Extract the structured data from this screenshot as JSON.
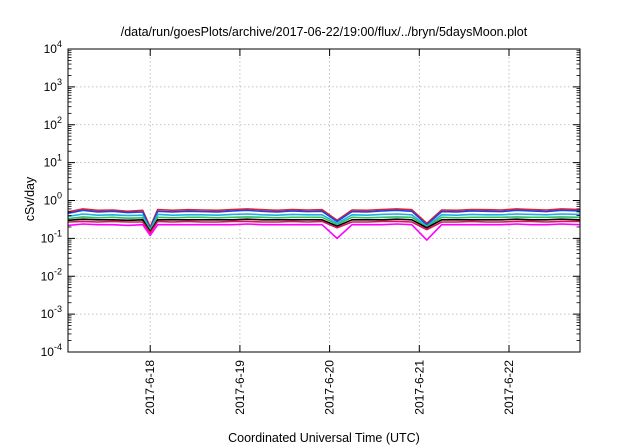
{
  "chart_data": {
    "type": "line",
    "title": "/data/run/goesPlots/archive/2017-06-22/19:00/flux/../bryn/5daysMoon.plot",
    "xlabel": "Coordinated Universal Time (UTC)",
    "ylabel": "cSv/day",
    "yscale": "log",
    "ylim": [
      0.0001,
      10000
    ],
    "xlim": [
      "2017-06-17T02:00",
      "2017-06-22T19:00"
    ],
    "grid": true,
    "y_ticks": [
      {
        "value": 0.0001,
        "mantissa": "10",
        "exp": "-4"
      },
      {
        "value": 0.001,
        "mantissa": "10",
        "exp": "-3"
      },
      {
        "value": 0.01,
        "mantissa": "10",
        "exp": "-2"
      },
      {
        "value": 0.1,
        "mantissa": "10",
        "exp": "-1"
      },
      {
        "value": 1,
        "mantissa": "10",
        "exp": "0"
      },
      {
        "value": 10,
        "mantissa": "10",
        "exp": "1"
      },
      {
        "value": 100,
        "mantissa": "10",
        "exp": "2"
      },
      {
        "value": 1000,
        "mantissa": "10",
        "exp": "3"
      },
      {
        "value": 10000,
        "mantissa": "10",
        "exp": "4"
      }
    ],
    "x_ticks": [
      {
        "value": "2017-06-18T00:00",
        "label": "2017-6-18"
      },
      {
        "value": "2017-06-19T00:00",
        "label": "2017-6-19"
      },
      {
        "value": "2017-06-20T00:00",
        "label": "2017-6-20"
      },
      {
        "value": "2017-06-21T00:00",
        "label": "2017-6-21"
      },
      {
        "value": "2017-06-22T00:00",
        "label": "2017-6-22"
      }
    ],
    "x": [
      "2017-06-17T02:00",
      "2017-06-17T06:00",
      "2017-06-17T10:00",
      "2017-06-17T14:00",
      "2017-06-17T18:00",
      "2017-06-17T22:00",
      "2017-06-18T00:00",
      "2017-06-18T02:00",
      "2017-06-18T06:00",
      "2017-06-18T10:00",
      "2017-06-18T14:00",
      "2017-06-18T18:00",
      "2017-06-18T22:00",
      "2017-06-19T02:00",
      "2017-06-19T06:00",
      "2017-06-19T10:00",
      "2017-06-19T14:00",
      "2017-06-19T18:00",
      "2017-06-19T22:00",
      "2017-06-20T02:00",
      "2017-06-20T06:00",
      "2017-06-20T10:00",
      "2017-06-20T14:00",
      "2017-06-20T18:00",
      "2017-06-20T22:00",
      "2017-06-21T02:00",
      "2017-06-21T06:00",
      "2017-06-21T10:00",
      "2017-06-21T14:00",
      "2017-06-21T18:00",
      "2017-06-21T22:00",
      "2017-06-22T02:00",
      "2017-06-22T06:00",
      "2017-06-22T10:00",
      "2017-06-22T14:00",
      "2017-06-22T19:00"
    ],
    "series": [
      {
        "color": "#e4202a",
        "values": [
          0.5,
          0.6,
          0.55,
          0.56,
          0.52,
          0.55,
          0.2,
          0.58,
          0.55,
          0.57,
          0.56,
          0.55,
          0.58,
          0.6,
          0.57,
          0.55,
          0.58,
          0.56,
          0.57,
          0.3,
          0.56,
          0.55,
          0.58,
          0.6,
          0.57,
          0.25,
          0.56,
          0.55,
          0.58,
          0.57,
          0.56,
          0.6,
          0.58,
          0.56,
          0.6,
          0.58
        ]
      },
      {
        "color": "#2040e0",
        "values": [
          0.46,
          0.55,
          0.5,
          0.52,
          0.48,
          0.5,
          0.18,
          0.52,
          0.5,
          0.52,
          0.51,
          0.5,
          0.53,
          0.55,
          0.52,
          0.5,
          0.53,
          0.51,
          0.52,
          0.28,
          0.51,
          0.5,
          0.53,
          0.55,
          0.52,
          0.23,
          0.51,
          0.5,
          0.53,
          0.52,
          0.51,
          0.55,
          0.53,
          0.51,
          0.55,
          0.53
        ]
      },
      {
        "color": "#20b0e0",
        "values": [
          0.38,
          0.44,
          0.41,
          0.42,
          0.4,
          0.41,
          0.17,
          0.43,
          0.41,
          0.42,
          0.42,
          0.41,
          0.43,
          0.44,
          0.42,
          0.41,
          0.43,
          0.42,
          0.42,
          0.25,
          0.42,
          0.41,
          0.43,
          0.44,
          0.42,
          0.21,
          0.42,
          0.41,
          0.43,
          0.42,
          0.42,
          0.44,
          0.43,
          0.42,
          0.44,
          0.43
        ]
      },
      {
        "color": "#30c060",
        "values": [
          0.33,
          0.37,
          0.35,
          0.36,
          0.34,
          0.35,
          0.16,
          0.36,
          0.35,
          0.36,
          0.36,
          0.35,
          0.36,
          0.37,
          0.36,
          0.35,
          0.36,
          0.36,
          0.36,
          0.23,
          0.36,
          0.35,
          0.36,
          0.37,
          0.36,
          0.2,
          0.36,
          0.35,
          0.36,
          0.36,
          0.36,
          0.37,
          0.36,
          0.36,
          0.37,
          0.36
        ]
      },
      {
        "color": "#000000",
        "values": [
          0.3,
          0.32,
          0.31,
          0.31,
          0.3,
          0.31,
          0.15,
          0.31,
          0.31,
          0.31,
          0.31,
          0.31,
          0.31,
          0.32,
          0.31,
          0.31,
          0.31,
          0.31,
          0.31,
          0.21,
          0.31,
          0.31,
          0.31,
          0.32,
          0.31,
          0.19,
          0.31,
          0.31,
          0.31,
          0.31,
          0.31,
          0.32,
          0.31,
          0.31,
          0.32,
          0.31
        ]
      },
      {
        "color": "#e01060",
        "values": [
          0.27,
          0.28,
          0.27,
          0.28,
          0.27,
          0.27,
          0.14,
          0.28,
          0.27,
          0.28,
          0.27,
          0.27,
          0.28,
          0.28,
          0.27,
          0.27,
          0.28,
          0.27,
          0.28,
          0.19,
          0.27,
          0.27,
          0.28,
          0.28,
          0.27,
          0.17,
          0.27,
          0.27,
          0.28,
          0.27,
          0.27,
          0.28,
          0.28,
          0.27,
          0.28,
          0.28
        ]
      },
      {
        "color": "#ff00ff",
        "values": [
          0.22,
          0.24,
          0.23,
          0.23,
          0.22,
          0.23,
          0.12,
          0.23,
          0.23,
          0.23,
          0.23,
          0.23,
          0.23,
          0.24,
          0.23,
          0.23,
          0.23,
          0.23,
          0.23,
          0.1,
          0.23,
          0.23,
          0.23,
          0.24,
          0.23,
          0.09,
          0.23,
          0.23,
          0.23,
          0.23,
          0.23,
          0.24,
          0.23,
          0.23,
          0.24,
          0.23
        ]
      }
    ]
  }
}
